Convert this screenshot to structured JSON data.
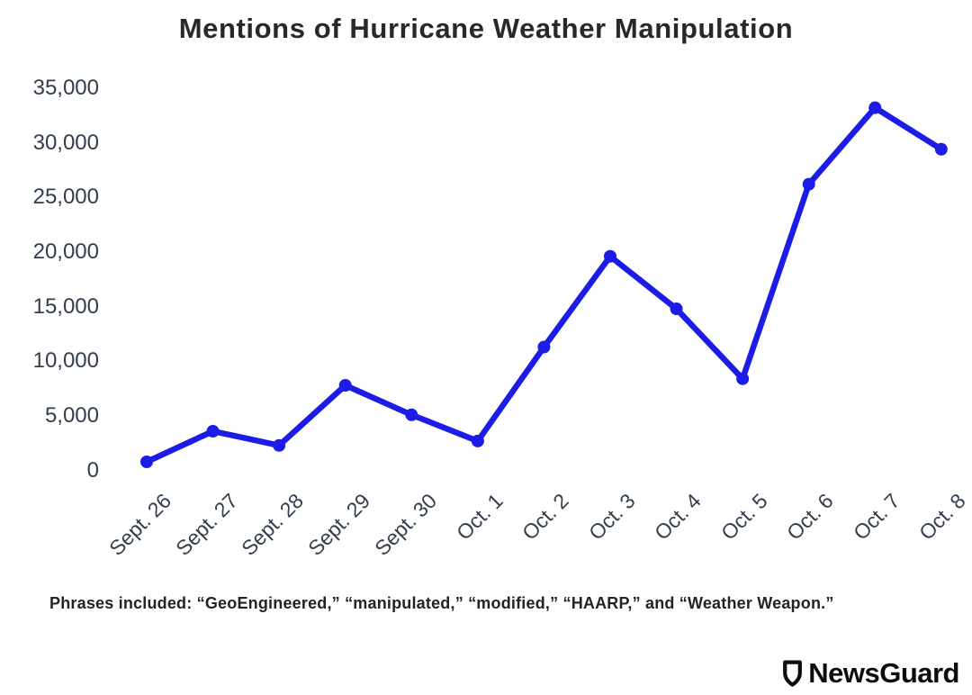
{
  "chart_data": {
    "type": "line",
    "title": "Mentions of Hurricane Weather Manipulation",
    "categories": [
      "Sept. 26",
      "Sept. 27",
      "Sept. 28",
      "Sept. 29",
      "Sept. 30",
      "Oct. 1",
      "Oct. 2",
      "Oct. 3",
      "Oct. 4",
      "Oct. 5",
      "Oct. 6",
      "Oct. 7",
      "Oct. 8"
    ],
    "values": [
      800,
      3600,
      2300,
      7800,
      5100,
      2700,
      11300,
      19600,
      14800,
      8400,
      26200,
      33200,
      29400
    ],
    "ylim": [
      0,
      35000
    ],
    "yticks": [
      0,
      5000,
      10000,
      15000,
      20000,
      25000,
      30000,
      35000
    ],
    "ytick_labels": [
      "0",
      "5,000",
      "10,000",
      "15,000",
      "20,000",
      "25,000",
      "30,000",
      "35,000"
    ],
    "xlabel": "",
    "ylabel": "",
    "grid": false,
    "legend": null,
    "line_color": "#1c1ce6",
    "marker": "circle"
  },
  "footnote": "Phrases included: “GeoEngineered,” “manipulated,” “modified,” “HAARP,” and “Weather Weapon.”",
  "branding": {
    "logo_text": "NewsGuard",
    "icon": "shield-icon"
  },
  "colors": {
    "line": "#1c1ce6",
    "axis_text": "#333e4c",
    "title_text": "#26282b",
    "footnote_text": "#232323",
    "logo_text": "#0d0d0d",
    "background": "#ffffff"
  }
}
